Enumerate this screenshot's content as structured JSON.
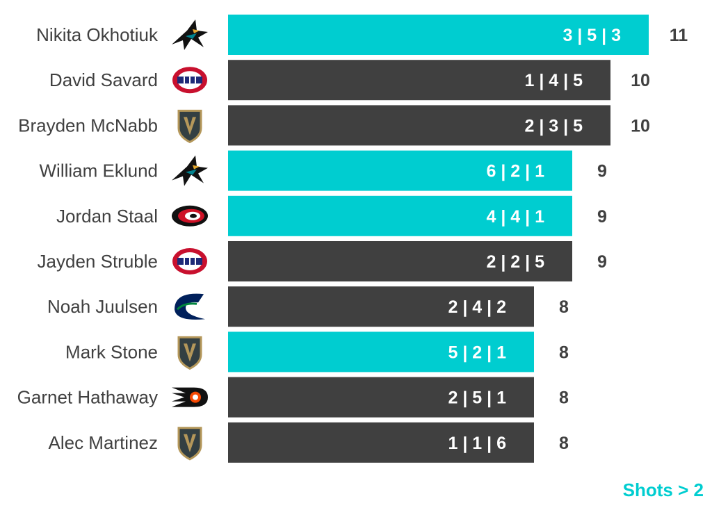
{
  "chart_data": {
    "type": "bar",
    "orientation": "horizontal",
    "title": "",
    "xlabel": "",
    "ylabel": "",
    "xlim": [
      0,
      11
    ],
    "grid": false,
    "categories": [
      "Nikita Okhotiuk",
      "David Savard",
      "Brayden McNabb",
      "William Eklund",
      "Jordan Staal",
      "Jayden Struble",
      "Noah Juulsen",
      "Mark Stone",
      "Garnet Hathaway",
      "Alec Martinez"
    ],
    "values": [
      11,
      10,
      10,
      9,
      9,
      9,
      8,
      8,
      8,
      8
    ],
    "breakdown_labels": [
      "3 | 5 | 3",
      "1 | 4 | 5",
      "2 | 3 | 5",
      "6 | 2 | 1",
      "4 | 4 | 1",
      "2 | 2 | 5",
      "2 | 4 | 2",
      "5 | 2 | 1",
      "2 | 5 | 1",
      "1 | 1 | 6"
    ],
    "highlighted": [
      true,
      false,
      false,
      true,
      true,
      false,
      false,
      true,
      false,
      false
    ],
    "team_logos": [
      "sharks-logo-icon",
      "canadiens-logo-icon",
      "golden-knights-logo-icon",
      "sharks-logo-icon",
      "hurricanes-logo-icon",
      "canadiens-logo-icon",
      "canucks-logo-icon",
      "golden-knights-logo-icon",
      "flyers-logo-icon",
      "golden-knights-logo-icon"
    ],
    "colors": {
      "highlight": "#00cdd0",
      "default": "#404040",
      "text_dark": "#404040"
    }
  },
  "note": "Shots > 2"
}
